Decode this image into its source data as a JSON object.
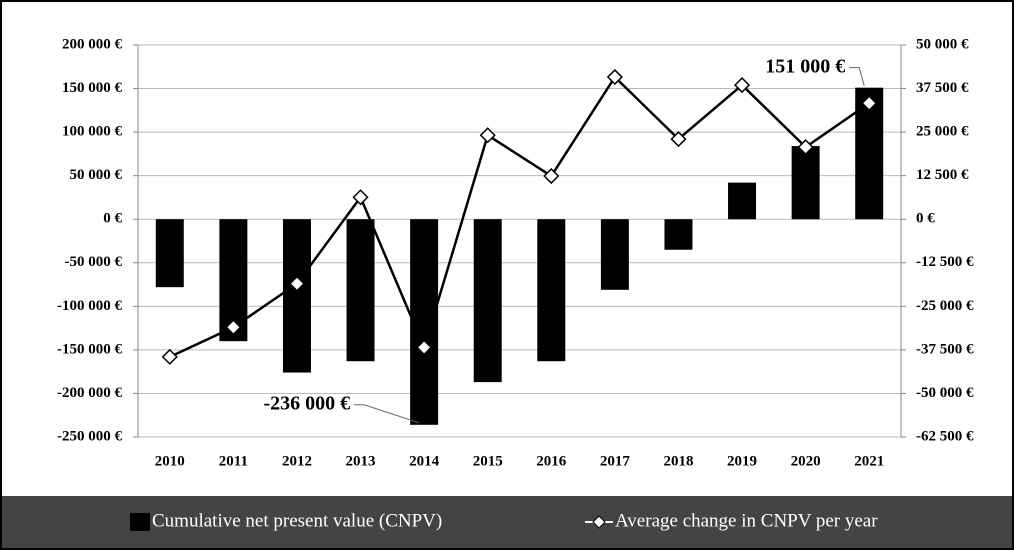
{
  "chart_data": {
    "type": "bar",
    "categories": [
      "2010",
      "2011",
      "2012",
      "2013",
      "2014",
      "2015",
      "2016",
      "2017",
      "2018",
      "2019",
      "2020",
      "2021"
    ],
    "series": [
      {
        "name": "Cumulative net present value (CNPV)",
        "type": "bar",
        "color": "#000000",
        "values": [
          -78000,
          -140000,
          -176000,
          -163000,
          -236000,
          -187000,
          -163000,
          -81000,
          -35000,
          42000,
          84000,
          151000
        ],
        "value_labels": [
          null,
          null,
          null,
          null,
          "-236 000 €",
          null,
          null,
          null,
          null,
          null,
          null,
          "151 000 €"
        ]
      },
      {
        "name": "Average change in CNPV per year",
        "type": "line",
        "axis": "y2",
        "color": "#000000",
        "values": [
          -39500,
          -31000,
          -18500,
          6300,
          -36800,
          24100,
          12400,
          40800,
          23000,
          38500,
          20700,
          33300
        ]
      }
    ],
    "ylim": [
      -250000,
      200000
    ],
    "yticks": [
      {
        "value": -250000,
        "label": "-250 000 €"
      },
      {
        "value": -200000,
        "label": "-200 000 €"
      },
      {
        "value": -150000,
        "label": "-150 000 €"
      },
      {
        "value": -100000,
        "label": "-100 000 €"
      },
      {
        "value": -50000,
        "label": "-50 000 €"
      },
      {
        "value": 0,
        "label": "0 €"
      },
      {
        "value": 50000,
        "label": "50 000 €"
      },
      {
        "value": 100000,
        "label": "100 000 €"
      },
      {
        "value": 150000,
        "label": "150 000 €"
      },
      {
        "value": 200000,
        "label": "200 000 €"
      }
    ],
    "y2lim": [
      -62500,
      50000
    ],
    "y2ticks": [
      {
        "value": -62500,
        "label": "-62 500 €"
      },
      {
        "value": -50000,
        "label": "-50 000 €"
      },
      {
        "value": -37500,
        "label": "-37 500 €"
      },
      {
        "value": -25000,
        "label": "-25 000 €"
      },
      {
        "value": -12500,
        "label": "-12 500 €"
      },
      {
        "value": 0,
        "label": "0 €"
      },
      {
        "value": 12500,
        "label": "12 500 €"
      },
      {
        "value": 25000,
        "label": "25 000 €"
      },
      {
        "value": 37500,
        "label": "37 500 €"
      },
      {
        "value": 50000,
        "label": "50 000 €"
      }
    ],
    "grid": true,
    "legend": "bottom"
  }
}
